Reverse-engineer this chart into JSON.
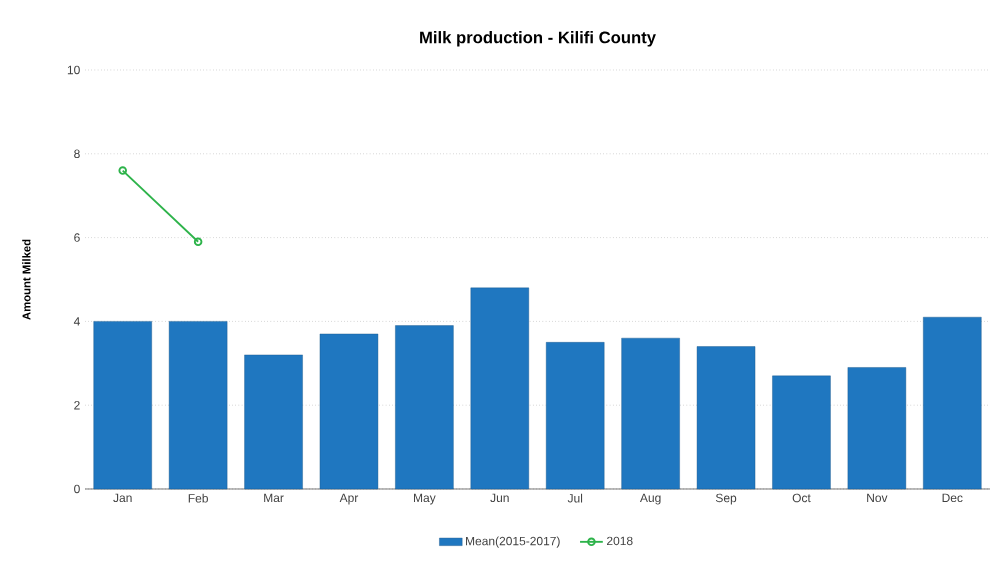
{
  "chart_data": {
    "type": "bar",
    "title": "Milk production - Kilifi County",
    "ylabel": "Amount Milked",
    "categories": [
      "Jan",
      "Feb",
      "Mar",
      "Apr",
      "May",
      "Jun",
      "Jul",
      "Aug",
      "Sep",
      "Oct",
      "Nov",
      "Dec"
    ],
    "series": [
      {
        "name": "Mean(2015-2017)",
        "color": "#1f77c0",
        "values": [
          4.0,
          4.0,
          3.2,
          3.7,
          3.9,
          4.8,
          3.5,
          3.6,
          3.4,
          2.7,
          2.9,
          4.1
        ]
      },
      {
        "name": "2018",
        "type": "line",
        "color": "#2db34a",
        "marker": "circle",
        "values": [
          7.6,
          5.9,
          null,
          null,
          null,
          null,
          null,
          null,
          null,
          null,
          null,
          null
        ]
      }
    ],
    "ylim": [
      0,
      10
    ],
    "yticks": [
      0,
      2,
      4,
      6,
      8,
      10
    ],
    "grid": "y",
    "legend": "bottom"
  }
}
